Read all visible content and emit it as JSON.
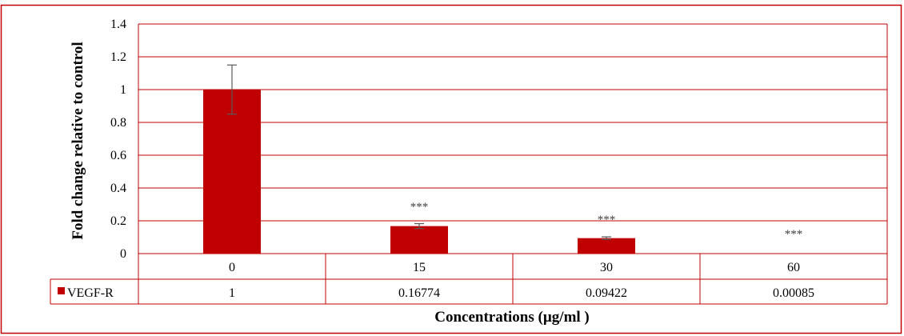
{
  "chart_data": {
    "type": "bar",
    "categories": [
      "0",
      "15",
      "30",
      "60"
    ],
    "series": [
      {
        "name": "VEGF-R",
        "values": [
          1,
          0.16774,
          0.09422,
          0.00085
        ],
        "value_labels": [
          "1",
          "0.16774",
          "0.09422",
          "0.00085"
        ],
        "error": [
          0.15,
          0.015,
          0.008,
          0
        ],
        "color": "#c00000"
      }
    ],
    "annotations": [
      "",
      "***",
      "***",
      "***"
    ],
    "yticks": [
      "0",
      "0.2",
      "0.4",
      "0.6",
      "0.8",
      "1",
      "1.2",
      "1.4"
    ],
    "ylim": [
      0,
      1.4
    ],
    "ylabel": "Fold change relative to control",
    "xlabel": "Concentrations (µg/ml )",
    "grid": true,
    "legend": "data-table"
  },
  "colors": {
    "bar": "#c00000",
    "grid": "#c00000",
    "border": "#c00000",
    "error_bar": "#595959"
  }
}
